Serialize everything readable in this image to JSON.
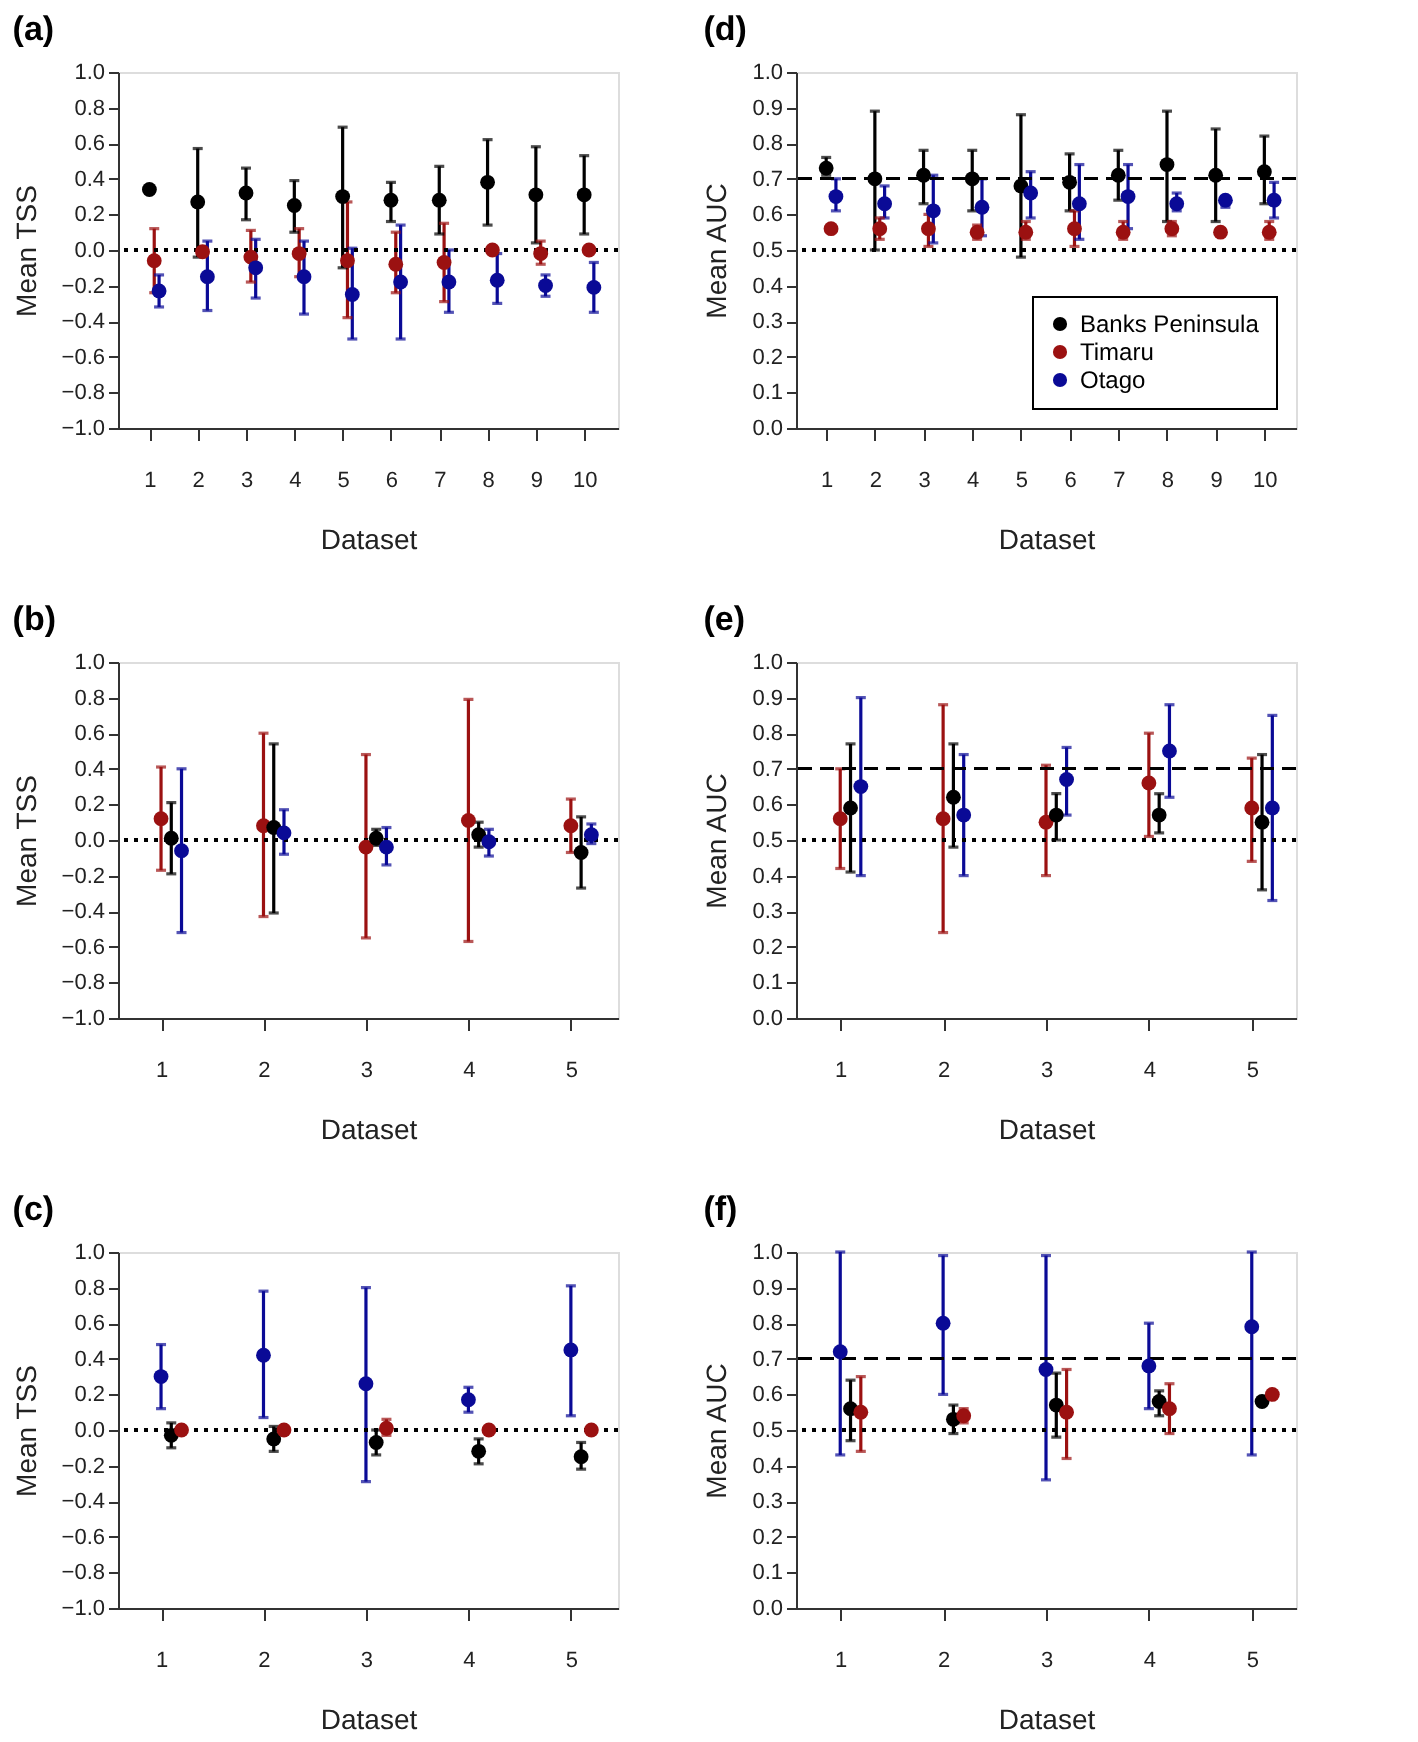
{
  "chart_data": [
    {
      "type": "scatter",
      "title": "(a)",
      "xlabel": "Dataset",
      "ylabel": "Mean TSS",
      "marker": "circle",
      "legend": false,
      "xlim": [
        0.35,
        10.7
      ],
      "xticks": [
        1,
        2,
        3,
        4,
        5,
        6,
        7,
        8,
        9,
        10
      ],
      "ylim": [
        -1,
        1
      ],
      "yticks": [
        {
          "value": -1,
          "label": "−1.0"
        },
        {
          "value": -0.8,
          "label": "−0.8"
        },
        {
          "value": -0.6,
          "label": "−0.6"
        },
        {
          "value": -0.4,
          "label": "−0.4"
        },
        {
          "value": -0.2,
          "label": "−0.2"
        },
        {
          "value": 0,
          "label": "0.0"
        },
        {
          "value": 0.2,
          "label": "0.2"
        },
        {
          "value": 0.4,
          "label": "0.4"
        },
        {
          "value": 0.6,
          "label": "0.6"
        },
        {
          "value": 0.8,
          "label": "0.8"
        },
        {
          "value": 1,
          "label": "1.0"
        }
      ],
      "ref_lines": [
        {
          "axis": "y",
          "value": 0,
          "color": "#000000",
          "line_style": "dotted"
        }
      ],
      "series": [
        {
          "color": "#000000",
          "x": [
            1,
            2,
            3,
            4,
            5,
            6,
            7,
            8,
            9,
            10
          ],
          "values": [
            0.34,
            0.27,
            0.32,
            0.25,
            0.3,
            0.28,
            0.28,
            0.38,
            0.31,
            0.31
          ],
          "errors": [
            null,
            [
              -0.04,
              0.57
            ],
            [
              0.17,
              0.46
            ],
            [
              0.1,
              0.39
            ],
            [
              -0.1,
              0.69
            ],
            [
              0.16,
              0.38
            ],
            [
              0.09,
              0.47
            ],
            [
              0.14,
              0.62
            ],
            [
              0.04,
              0.58
            ],
            [
              0.09,
              0.53
            ]
          ]
        },
        {
          "color": "#9b1111",
          "x": [
            1.1,
            2.1,
            3.1,
            4.1,
            5.1,
            6.1,
            7.1,
            8.1,
            9.1,
            10.1
          ],
          "values": [
            -0.06,
            -0.01,
            -0.04,
            -0.02,
            -0.06,
            -0.08,
            -0.07,
            0.0,
            -0.02,
            0.0
          ],
          "errors": [
            [
              -0.24,
              0.12
            ],
            null,
            [
              -0.18,
              0.11
            ],
            [
              -0.15,
              0.12
            ],
            [
              -0.38,
              0.27
            ],
            [
              -0.24,
              0.1
            ],
            [
              -0.29,
              0.15
            ],
            null,
            [
              -0.08,
              0.05
            ],
            null
          ]
        },
        {
          "color": "#0a0a96",
          "x": [
            1.2,
            2.2,
            3.2,
            4.2,
            5.2,
            6.2,
            7.2,
            8.2,
            9.2,
            10.2
          ],
          "values": [
            -0.23,
            -0.15,
            -0.1,
            -0.15,
            -0.25,
            -0.18,
            -0.18,
            -0.17,
            -0.2,
            -0.21
          ],
          "errors": [
            [
              -0.32,
              -0.14
            ],
            [
              -0.34,
              0.05
            ],
            [
              -0.27,
              0.06
            ],
            [
              -0.36,
              0.05
            ],
            [
              -0.5,
              0.01
            ],
            [
              -0.5,
              0.14
            ],
            [
              -0.35,
              0.0
            ],
            [
              -0.3,
              -0.02
            ],
            [
              -0.26,
              -0.14
            ],
            [
              -0.35,
              -0.07
            ]
          ]
        }
      ]
    },
    {
      "type": "scatter",
      "title": "(d)",
      "xlabel": "Dataset",
      "ylabel": "Mean AUC",
      "marker": "circle",
      "legend": "bottom right",
      "xlim": [
        0.38,
        10.65
      ],
      "xticks": [
        1,
        2,
        3,
        4,
        5,
        6,
        7,
        8,
        9,
        10
      ],
      "ylim": [
        0,
        1
      ],
      "yticks": [
        {
          "value": 0,
          "label": "0.0"
        },
        0.1,
        0.2,
        0.3,
        0.4,
        0.5,
        0.6,
        0.7,
        0.8,
        0.9,
        {
          "value": 1,
          "label": "1.0"
        }
      ],
      "ref_lines": [
        {
          "axis": "y",
          "value": 0.7,
          "color": "#000000",
          "line_style": "dashed"
        },
        {
          "axis": "y",
          "value": 0.5,
          "color": "#000000",
          "line_style": "dotted"
        }
      ],
      "series": [
        {
          "name": "Banks Peninsula",
          "color": "#000000",
          "x": [
            1,
            2,
            3,
            4,
            5,
            6,
            7,
            8,
            9,
            10
          ],
          "values": [
            0.73,
            0.7,
            0.71,
            0.7,
            0.68,
            0.69,
            0.71,
            0.74,
            0.71,
            0.72
          ],
          "errors": [
            [
              0.71,
              0.76
            ],
            [
              0.5,
              0.89
            ],
            [
              0.63,
              0.78
            ],
            [
              0.61,
              0.78
            ],
            [
              0.48,
              0.88
            ],
            [
              0.61,
              0.77
            ],
            [
              0.64,
              0.78
            ],
            [
              0.58,
              0.89
            ],
            [
              0.58,
              0.84
            ],
            [
              0.63,
              0.82
            ]
          ]
        },
        {
          "name": "Timaru",
          "color": "#9b1111",
          "x": [
            1.1,
            2.1,
            3.1,
            4.1,
            5.1,
            6.1,
            7.1,
            8.1,
            9.1,
            10.1
          ],
          "values": [
            0.56,
            0.56,
            0.56,
            0.55,
            0.55,
            0.56,
            0.55,
            0.56,
            0.55,
            0.55
          ],
          "errors": [
            null,
            [
              0.53,
              0.59
            ],
            [
              0.51,
              0.6
            ],
            [
              0.53,
              0.57
            ],
            [
              0.53,
              0.58
            ],
            [
              0.51,
              0.61
            ],
            [
              0.53,
              0.58
            ],
            [
              0.54,
              0.58
            ],
            null,
            [
              0.53,
              0.58
            ]
          ]
        },
        {
          "name": "Otago",
          "color": "#0a0a96",
          "x": [
            1.2,
            2.2,
            3.2,
            4.2,
            5.2,
            6.2,
            7.2,
            8.2,
            9.2,
            10.2
          ],
          "values": [
            0.65,
            0.63,
            0.61,
            0.62,
            0.66,
            0.63,
            0.65,
            0.63,
            0.64,
            0.64
          ],
          "errors": [
            [
              0.61,
              0.7
            ],
            [
              0.59,
              0.68
            ],
            [
              0.52,
              0.71
            ],
            [
              0.54,
              0.7
            ],
            [
              0.59,
              0.72
            ],
            [
              0.53,
              0.74
            ],
            [
              0.56,
              0.74
            ],
            [
              0.61,
              0.66
            ],
            [
              0.62,
              0.65
            ],
            [
              0.59,
              0.69
            ]
          ]
        }
      ]
    },
    {
      "type": "scatter",
      "title": "(b)",
      "xlabel": "Dataset",
      "ylabel": "Mean TSS",
      "marker": "circle",
      "legend": false,
      "xlim": [
        0.58,
        5.46
      ],
      "xticks": [
        1,
        2,
        3,
        4,
        5
      ],
      "ylim": [
        -1,
        1
      ],
      "yticks": [
        {
          "value": -1,
          "label": "−1.0"
        },
        {
          "value": -0.8,
          "label": "−0.8"
        },
        {
          "value": -0.6,
          "label": "−0.6"
        },
        {
          "value": -0.4,
          "label": "−0.4"
        },
        {
          "value": -0.2,
          "label": "−0.2"
        },
        {
          "value": 0,
          "label": "0.0"
        },
        {
          "value": 0.2,
          "label": "0.2"
        },
        {
          "value": 0.4,
          "label": "0.4"
        },
        {
          "value": 0.6,
          "label": "0.6"
        },
        {
          "value": 0.8,
          "label": "0.8"
        },
        {
          "value": 1,
          "label": "1.0"
        }
      ],
      "ref_lines": [
        {
          "axis": "y",
          "value": 0,
          "color": "#000000",
          "line_style": "dotted"
        }
      ],
      "series": [
        {
          "color": "#9b1111",
          "x": [
            1,
            2,
            3,
            4,
            5
          ],
          "values": [
            0.12,
            0.08,
            -0.04,
            0.11,
            0.08
          ],
          "errors": [
            [
              -0.17,
              0.41
            ],
            [
              -0.43,
              0.6
            ],
            [
              -0.55,
              0.48
            ],
            [
              -0.57,
              0.79
            ],
            [
              -0.07,
              0.23
            ]
          ]
        },
        {
          "color": "#000000",
          "x": [
            1.1,
            2.1,
            3.1,
            4.1,
            5.1
          ],
          "values": [
            0.01,
            0.07,
            0.01,
            0.03,
            -0.07
          ],
          "errors": [
            [
              -0.19,
              0.21
            ],
            [
              -0.41,
              0.54
            ],
            [
              -0.03,
              0.06
            ],
            [
              -0.04,
              0.1
            ],
            [
              -0.27,
              0.13
            ]
          ]
        },
        {
          "color": "#0a0a96",
          "x": [
            1.2,
            2.2,
            3.2,
            4.2,
            5.2
          ],
          "values": [
            -0.06,
            0.04,
            -0.04,
            -0.01,
            0.03
          ],
          "errors": [
            [
              -0.52,
              0.4
            ],
            [
              -0.08,
              0.17
            ],
            [
              -0.14,
              0.07
            ],
            [
              -0.09,
              0.06
            ],
            [
              -0.02,
              0.09
            ]
          ]
        }
      ]
    },
    {
      "type": "scatter",
      "title": "(e)",
      "xlabel": "Dataset",
      "ylabel": "Mean AUC",
      "marker": "circle",
      "legend": false,
      "xlim": [
        0.57,
        5.43
      ],
      "xticks": [
        1,
        2,
        3,
        4,
        5
      ],
      "ylim": [
        0,
        1
      ],
      "yticks": [
        {
          "value": 0,
          "label": "0.0"
        },
        0.1,
        0.2,
        0.3,
        0.4,
        0.5,
        0.6,
        0.7,
        0.8,
        0.9,
        {
          "value": 1,
          "label": "1.0"
        }
      ],
      "ref_lines": [
        {
          "axis": "y",
          "value": 0.7,
          "color": "#000000",
          "line_style": "dashed"
        },
        {
          "axis": "y",
          "value": 0.5,
          "color": "#000000",
          "line_style": "dotted"
        }
      ],
      "series": [
        {
          "color": "#9b1111",
          "x": [
            1,
            2,
            3,
            4,
            5
          ],
          "values": [
            0.56,
            0.56,
            0.55,
            0.66,
            0.59
          ],
          "errors": [
            [
              0.42,
              0.7
            ],
            [
              0.24,
              0.88
            ],
            [
              0.4,
              0.71
            ],
            [
              0.51,
              0.8
            ],
            [
              0.44,
              0.73
            ]
          ]
        },
        {
          "color": "#000000",
          "x": [
            1.1,
            2.1,
            3.1,
            4.1,
            5.1
          ],
          "values": [
            0.59,
            0.62,
            0.57,
            0.57,
            0.55
          ],
          "errors": [
            [
              0.41,
              0.77
            ],
            [
              0.48,
              0.77
            ],
            [
              0.5,
              0.63
            ],
            [
              0.52,
              0.63
            ],
            [
              0.36,
              0.74
            ]
          ]
        },
        {
          "color": "#0a0a96",
          "x": [
            1.2,
            2.2,
            3.2,
            4.2,
            5.2
          ],
          "values": [
            0.65,
            0.57,
            0.67,
            0.75,
            0.59
          ],
          "errors": [
            [
              0.4,
              0.9
            ],
            [
              0.4,
              0.74
            ],
            [
              0.57,
              0.76
            ],
            [
              0.62,
              0.88
            ],
            [
              0.33,
              0.85
            ]
          ]
        }
      ]
    },
    {
      "type": "scatter",
      "title": "(c)",
      "xlabel": "Dataset",
      "ylabel": "Mean TSS",
      "marker": "circle",
      "legend": false,
      "xlim": [
        0.58,
        5.46
      ],
      "xticks": [
        1,
        2,
        3,
        4,
        5
      ],
      "ylim": [
        -1,
        1
      ],
      "yticks": [
        {
          "value": -1,
          "label": "−1.0"
        },
        {
          "value": -0.8,
          "label": "−0.8"
        },
        {
          "value": -0.6,
          "label": "−0.6"
        },
        {
          "value": -0.4,
          "label": "−0.4"
        },
        {
          "value": -0.2,
          "label": "−0.2"
        },
        {
          "value": 0,
          "label": "0.0"
        },
        {
          "value": 0.2,
          "label": "0.2"
        },
        {
          "value": 0.4,
          "label": "0.4"
        },
        {
          "value": 0.6,
          "label": "0.6"
        },
        {
          "value": 0.8,
          "label": "0.8"
        },
        {
          "value": 1,
          "label": "1.0"
        }
      ],
      "ref_lines": [
        {
          "axis": "y",
          "value": 0,
          "color": "#000000",
          "line_style": "dotted"
        }
      ],
      "series": [
        {
          "color": "#0a0a96",
          "x": [
            1,
            2,
            3,
            4,
            5
          ],
          "values": [
            0.3,
            0.42,
            0.26,
            0.17,
            0.45
          ],
          "errors": [
            [
              0.12,
              0.48
            ],
            [
              0.07,
              0.78
            ],
            [
              -0.29,
              0.8
            ],
            [
              0.1,
              0.24
            ],
            [
              0.08,
              0.81
            ]
          ]
        },
        {
          "color": "#000000",
          "x": [
            1.1,
            2.1,
            3.1,
            4.1,
            5.1
          ],
          "values": [
            -0.03,
            -0.05,
            -0.07,
            -0.12,
            -0.15
          ],
          "errors": [
            [
              -0.1,
              0.04
            ],
            [
              -0.12,
              0.02
            ],
            [
              -0.14,
              0.0
            ],
            [
              -0.19,
              -0.05
            ],
            [
              -0.22,
              -0.07
            ]
          ]
        },
        {
          "color": "#9b1111",
          "x": [
            1.2,
            2.2,
            3.2,
            4.2,
            5.2
          ],
          "values": [
            0.0,
            0.0,
            0.01,
            0.0,
            0.0
          ],
          "errors": [
            null,
            null,
            [
              -0.03,
              0.06
            ],
            null,
            null
          ]
        }
      ]
    },
    {
      "type": "scatter",
      "title": "(f)",
      "xlabel": "Dataset",
      "ylabel": "Mean AUC",
      "marker": "circle",
      "legend": false,
      "xlim": [
        0.57,
        5.43
      ],
      "xticks": [
        1,
        2,
        3,
        4,
        5
      ],
      "ylim": [
        0,
        1
      ],
      "yticks": [
        {
          "value": 0,
          "label": "0.0"
        },
        0.1,
        0.2,
        0.3,
        0.4,
        0.5,
        0.6,
        0.7,
        0.8,
        0.9,
        {
          "value": 1,
          "label": "1.0"
        }
      ],
      "ref_lines": [
        {
          "axis": "y",
          "value": 0.7,
          "color": "#000000",
          "line_style": "dashed"
        },
        {
          "axis": "y",
          "value": 0.5,
          "color": "#000000",
          "line_style": "dotted"
        }
      ],
      "series": [
        {
          "color": "#0a0a96",
          "x": [
            1,
            2,
            3,
            4,
            5
          ],
          "values": [
            0.72,
            0.8,
            0.67,
            0.68,
            0.79
          ],
          "errors": [
            [
              0.43,
              1.0
            ],
            [
              0.6,
              0.99
            ],
            [
              0.36,
              0.99
            ],
            [
              0.56,
              0.8
            ],
            [
              0.43,
              1.0
            ]
          ]
        },
        {
          "color": "#000000",
          "x": [
            1.1,
            2.1,
            3.1,
            4.1,
            5.1
          ],
          "values": [
            0.56,
            0.53,
            0.57,
            0.58,
            0.58
          ],
          "errors": [
            [
              0.47,
              0.64
            ],
            [
              0.49,
              0.57
            ],
            [
              0.48,
              0.66
            ],
            [
              0.54,
              0.61
            ],
            null
          ]
        },
        {
          "color": "#9b1111",
          "x": [
            1.2,
            2.2,
            3.2,
            4.2,
            5.2
          ],
          "values": [
            0.55,
            0.54,
            0.55,
            0.56,
            0.6
          ],
          "errors": [
            [
              0.44,
              0.65
            ],
            [
              0.52,
              0.56
            ],
            [
              0.42,
              0.67
            ],
            [
              0.49,
              0.63
            ],
            null
          ]
        }
      ]
    }
  ]
}
